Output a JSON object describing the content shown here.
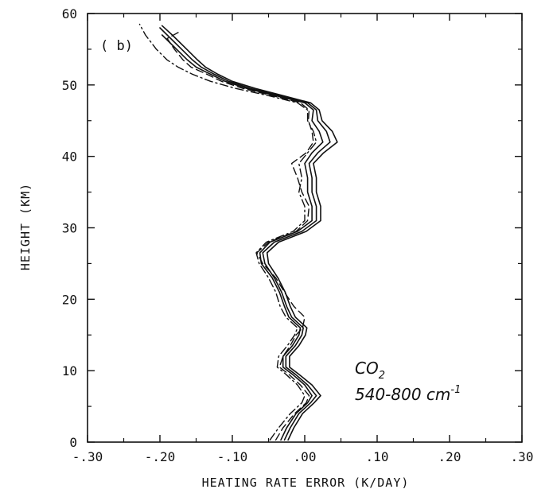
{
  "chart_data": {
    "type": "line",
    "title": "",
    "panel_label": "( b)",
    "xlabel": "HEATING RATE ERROR (K/DAY)",
    "ylabel": "HEIGHT (KM)",
    "xlim": [
      -0.3,
      0.3
    ],
    "ylim": [
      0,
      60
    ],
    "x_tick_labels": [
      "-.30",
      "-.20",
      "-.10",
      ".00",
      ".10",
      ".20",
      ".30"
    ],
    "x_tick_values": [
      -0.3,
      -0.2,
      -0.1,
      0.0,
      0.1,
      0.2,
      0.3
    ],
    "y_tick_labels": [
      "0",
      "10",
      "20",
      "30",
      "40",
      "50",
      "60"
    ],
    "y_tick_values": [
      0,
      10,
      20,
      30,
      40,
      50,
      60
    ],
    "grid": false,
    "annotation": {
      "species": "CO",
      "species_subscript": "2",
      "band": "540-800 cm",
      "band_superscript": "-1"
    },
    "series": [
      {
        "style": "solid",
        "points": [
          [
            -0.033,
            0.3
          ],
          [
            -0.025,
            2
          ],
          [
            -0.012,
            4
          ],
          [
            0.004,
            5.5
          ],
          [
            0.01,
            6.5
          ],
          [
            0.0,
            8
          ],
          [
            -0.017,
            9.5
          ],
          [
            -0.03,
            10.5
          ],
          [
            -0.03,
            12
          ],
          [
            -0.017,
            13.5
          ],
          [
            -0.008,
            15
          ],
          [
            -0.006,
            16
          ],
          [
            -0.022,
            17.5
          ],
          [
            -0.028,
            19
          ],
          [
            -0.035,
            21
          ],
          [
            -0.045,
            23
          ],
          [
            -0.06,
            25
          ],
          [
            -0.062,
            26.5
          ],
          [
            -0.048,
            28
          ],
          [
            -0.01,
            29.5
          ],
          [
            0.01,
            31
          ],
          [
            0.01,
            33
          ],
          [
            0.004,
            35
          ],
          [
            0.004,
            37
          ],
          [
            0.0,
            39
          ],
          [
            0.01,
            40.5
          ],
          [
            0.025,
            42
          ],
          [
            0.02,
            43.5
          ],
          [
            0.01,
            45
          ],
          [
            0.012,
            46.5
          ],
          [
            0.0,
            47.5
          ],
          [
            -0.04,
            48.5
          ],
          [
            -0.08,
            49.5
          ],
          [
            -0.11,
            50.5
          ],
          [
            -0.13,
            51.5
          ],
          [
            -0.15,
            52.5
          ],
          [
            -0.162,
            53.5
          ],
          [
            -0.177,
            55
          ],
          [
            -0.197,
            57
          ]
        ]
      },
      {
        "style": "solid",
        "points": [
          [
            -0.028,
            0.3
          ],
          [
            -0.02,
            2
          ],
          [
            -0.008,
            4
          ],
          [
            0.008,
            5.5
          ],
          [
            0.016,
            6.5
          ],
          [
            0.004,
            8
          ],
          [
            -0.013,
            9.5
          ],
          [
            -0.026,
            10.5
          ],
          [
            -0.026,
            12
          ],
          [
            -0.013,
            13.5
          ],
          [
            -0.004,
            15
          ],
          [
            -0.002,
            16
          ],
          [
            -0.018,
            17.5
          ],
          [
            -0.025,
            19
          ],
          [
            -0.032,
            21
          ],
          [
            -0.042,
            23
          ],
          [
            -0.055,
            25
          ],
          [
            -0.058,
            26.5
          ],
          [
            -0.042,
            28
          ],
          [
            -0.004,
            29.5
          ],
          [
            0.016,
            31
          ],
          [
            0.016,
            33
          ],
          [
            0.01,
            35
          ],
          [
            0.01,
            37
          ],
          [
            0.006,
            39
          ],
          [
            0.018,
            40.5
          ],
          [
            0.035,
            42
          ],
          [
            0.03,
            43.5
          ],
          [
            0.018,
            45
          ],
          [
            0.016,
            46.5
          ],
          [
            0.004,
            47.5
          ],
          [
            -0.035,
            48.5
          ],
          [
            -0.075,
            49.5
          ],
          [
            -0.105,
            50.5
          ],
          [
            -0.125,
            51.5
          ],
          [
            -0.143,
            52.5
          ],
          [
            -0.155,
            53.5
          ],
          [
            -0.17,
            55
          ],
          [
            -0.19,
            57
          ],
          [
            -0.2,
            58
          ]
        ]
      },
      {
        "style": "solid",
        "points": [
          [
            -0.023,
            0.3
          ],
          [
            -0.015,
            2
          ],
          [
            -0.003,
            4
          ],
          [
            0.013,
            5.5
          ],
          [
            0.022,
            6.5
          ],
          [
            0.01,
            8
          ],
          [
            -0.008,
            9.5
          ],
          [
            -0.021,
            10.5
          ],
          [
            -0.021,
            12
          ],
          [
            -0.008,
            13.5
          ],
          [
            0.001,
            15
          ],
          [
            0.003,
            16
          ],
          [
            -0.013,
            17.5
          ],
          [
            -0.02,
            19
          ],
          [
            -0.027,
            21
          ],
          [
            -0.037,
            23
          ],
          [
            -0.05,
            25
          ],
          [
            -0.052,
            26.5
          ],
          [
            -0.036,
            28
          ],
          [
            0.002,
            29.5
          ],
          [
            0.022,
            31
          ],
          [
            0.022,
            33
          ],
          [
            0.016,
            35
          ],
          [
            0.016,
            37
          ],
          [
            0.012,
            39
          ],
          [
            0.026,
            40.5
          ],
          [
            0.045,
            42
          ],
          [
            0.038,
            43.5
          ],
          [
            0.024,
            45
          ],
          [
            0.02,
            46.5
          ],
          [
            0.008,
            47.5
          ],
          [
            -0.03,
            48.5
          ],
          [
            -0.068,
            49.5
          ],
          [
            -0.1,
            50.5
          ],
          [
            -0.12,
            51.5
          ],
          [
            -0.137,
            52.5
          ],
          [
            -0.148,
            53.5
          ],
          [
            -0.163,
            55
          ],
          [
            -0.183,
            57
          ],
          [
            -0.197,
            58.3
          ]
        ]
      },
      {
        "style": "dashed",
        "points": [
          [
            -0.04,
            0.3
          ],
          [
            -0.03,
            2
          ],
          [
            -0.014,
            4
          ],
          [
            0.002,
            5.5
          ],
          [
            0.006,
            6.5
          ],
          [
            -0.006,
            8
          ],
          [
            -0.022,
            9.5
          ],
          [
            -0.035,
            10.5
          ],
          [
            -0.03,
            12
          ],
          [
            -0.02,
            13.5
          ],
          [
            -0.012,
            15
          ],
          [
            -0.003,
            16
          ],
          [
            0.0,
            17.5
          ],
          [
            -0.015,
            19
          ],
          [
            -0.028,
            21
          ],
          [
            -0.04,
            23
          ],
          [
            -0.058,
            25
          ],
          [
            -0.066,
            26.5
          ],
          [
            -0.05,
            28
          ],
          [
            -0.012,
            29.5
          ],
          [
            0.004,
            31
          ],
          [
            0.006,
            33
          ],
          [
            -0.004,
            35
          ],
          [
            -0.01,
            37
          ],
          [
            -0.018,
            39
          ],
          [
            0.002,
            40.5
          ],
          [
            0.012,
            42
          ],
          [
            0.01,
            43.5
          ],
          [
            0.005,
            45
          ],
          [
            0.006,
            46.5
          ],
          [
            -0.006,
            47.5
          ],
          [
            -0.045,
            48.5
          ],
          [
            -0.085,
            49.5
          ],
          [
            -0.115,
            50.5
          ],
          [
            -0.135,
            51.5
          ],
          [
            -0.157,
            52.5
          ],
          [
            -0.168,
            53.5
          ],
          [
            -0.18,
            55
          ],
          [
            -0.19,
            56.5
          ],
          [
            -0.172,
            57.5
          ]
        ]
      },
      {
        "style": "dash-dot",
        "points": [
          [
            -0.048,
            0.3
          ],
          [
            -0.036,
            2
          ],
          [
            -0.02,
            4
          ],
          [
            -0.004,
            5.5
          ],
          [
            0.0,
            6.5
          ],
          [
            -0.01,
            8
          ],
          [
            -0.026,
            9.5
          ],
          [
            -0.038,
            10.5
          ],
          [
            -0.036,
            12
          ],
          [
            -0.024,
            13.5
          ],
          [
            -0.014,
            15
          ],
          [
            -0.01,
            16
          ],
          [
            -0.026,
            17.5
          ],
          [
            -0.034,
            19
          ],
          [
            -0.04,
            21
          ],
          [
            -0.05,
            23
          ],
          [
            -0.063,
            25
          ],
          [
            -0.067,
            26.5
          ],
          [
            -0.053,
            28
          ],
          [
            -0.016,
            29.5
          ],
          [
            0.0,
            31
          ],
          [
            0.0,
            33
          ],
          [
            -0.008,
            35
          ],
          [
            -0.004,
            37
          ],
          [
            -0.008,
            39
          ],
          [
            0.004,
            40.5
          ],
          [
            0.016,
            42
          ],
          [
            0.012,
            43.5
          ],
          [
            0.004,
            45
          ],
          [
            0.004,
            46.5
          ],
          [
            -0.01,
            47.5
          ],
          [
            -0.05,
            48.5
          ],
          [
            -0.095,
            49.5
          ],
          [
            -0.13,
            50.5
          ],
          [
            -0.155,
            51.5
          ],
          [
            -0.175,
            52.5
          ],
          [
            -0.19,
            53.5
          ],
          [
            -0.205,
            55
          ],
          [
            -0.22,
            57
          ],
          [
            -0.228,
            58.5
          ]
        ]
      }
    ]
  }
}
